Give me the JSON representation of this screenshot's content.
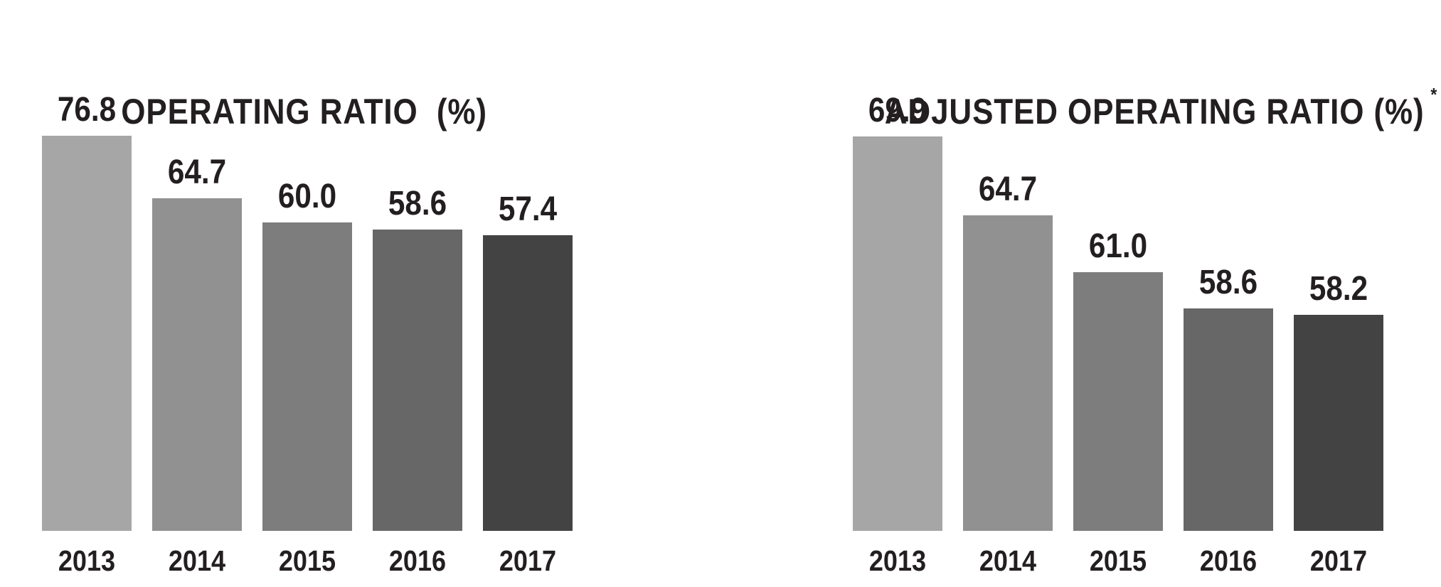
{
  "page": {
    "background": "#ffffff",
    "text_color": "#231f20"
  },
  "chart_data": [
    {
      "type": "bar",
      "title": "OPERATING RATIO  (%)",
      "title_suffix": "",
      "categories": [
        "2013",
        "2014",
        "2015",
        "2016",
        "2017"
      ],
      "values": [
        76.8,
        64.7,
        60.0,
        58.6,
        57.4
      ],
      "value_labels": [
        "76.8",
        "64.7",
        "60.0",
        "58.6",
        "57.4"
      ],
      "bar_colors": [
        "#a6a6a6",
        "#919191",
        "#7d7d7d",
        "#676767",
        "#434343"
      ],
      "ylim": [
        0,
        76.8
      ],
      "grid": false,
      "legend": "none",
      "axis_lines": "none",
      "xlabel": "",
      "ylabel": ""
    },
    {
      "type": "bar",
      "title": "ADJUSTED OPERATING RATIO (%)",
      "title_suffix": "*",
      "categories": [
        "2013",
        "2014",
        "2015",
        "2016",
        "2017"
      ],
      "values": [
        69.9,
        64.7,
        61.0,
        58.6,
        58.2
      ],
      "value_labels": [
        "69.9",
        "64.7",
        "61.0",
        "58.6",
        "58.2"
      ],
      "bar_colors": [
        "#a6a6a6",
        "#919191",
        "#7d7d7d",
        "#676767",
        "#434343"
      ],
      "ylim": [
        44,
        69.9
      ],
      "grid": false,
      "legend": "none",
      "axis_lines": "none",
      "xlabel": "",
      "ylabel": ""
    }
  ]
}
